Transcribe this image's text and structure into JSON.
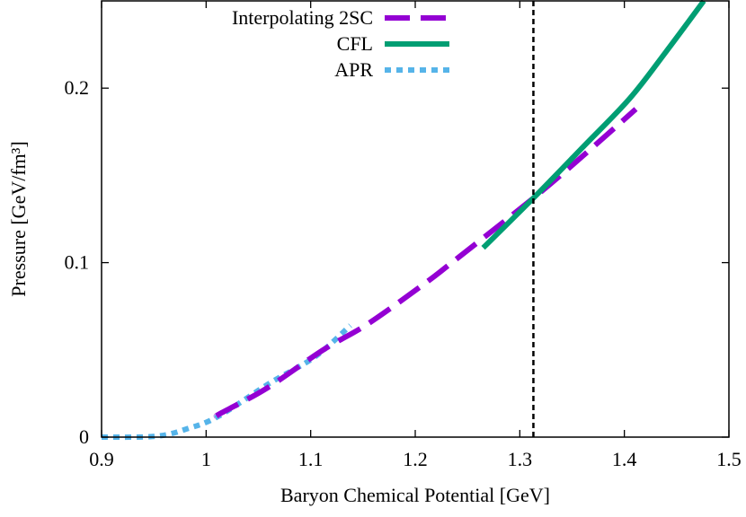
{
  "chart_data": {
    "type": "line",
    "xlabel": "Baryon Chemical Potential [GeV]",
    "ylabel": "Pressure [GeV/fm³]",
    "xlim": [
      0.9,
      1.5
    ],
    "ylim": [
      0,
      0.25
    ],
    "xticks": [
      "0.9",
      "1",
      "1.1",
      "1.2",
      "1.3",
      "1.4",
      "1.5"
    ],
    "xtick_values": [
      0.9,
      1.0,
      1.1,
      1.2,
      1.3,
      1.4,
      1.5
    ],
    "yticks": [
      "0",
      "0.1",
      "0.2"
    ],
    "ytick_values": [
      0,
      0.1,
      0.2
    ],
    "grid": false,
    "legend_position": "top-left",
    "vertical_line": {
      "x": 1.313,
      "style": "dashed",
      "color": "#000000"
    },
    "series": [
      {
        "name": "Interpolating 2SC",
        "color": "#9400d3",
        "style": "dashed",
        "x": [
          1.01,
          1.015,
          1.058,
          1.112,
          1.155,
          1.209,
          1.235,
          1.313,
          1.36,
          1.411
        ],
        "y": [
          0.012,
          0.014,
          0.028,
          0.05,
          0.065,
          0.088,
          0.1,
          0.137,
          0.161,
          0.188
        ]
      },
      {
        "name": "CFL",
        "color": "#009e73",
        "style": "solid",
        "x": [
          1.265,
          1.313,
          1.36,
          1.405,
          1.44,
          1.476
        ],
        "y": [
          0.1085,
          0.137,
          0.166,
          0.194,
          0.221,
          0.25
        ]
      },
      {
        "name": "APR",
        "color": "#56b4e9",
        "style": "dotted",
        "x": [
          0.9,
          0.952,
          0.983,
          1.012,
          1.061,
          1.104,
          1.138
        ],
        "y": [
          0.0,
          0.0005,
          0.005,
          0.012,
          0.031,
          0.046,
          0.064
        ]
      }
    ]
  }
}
